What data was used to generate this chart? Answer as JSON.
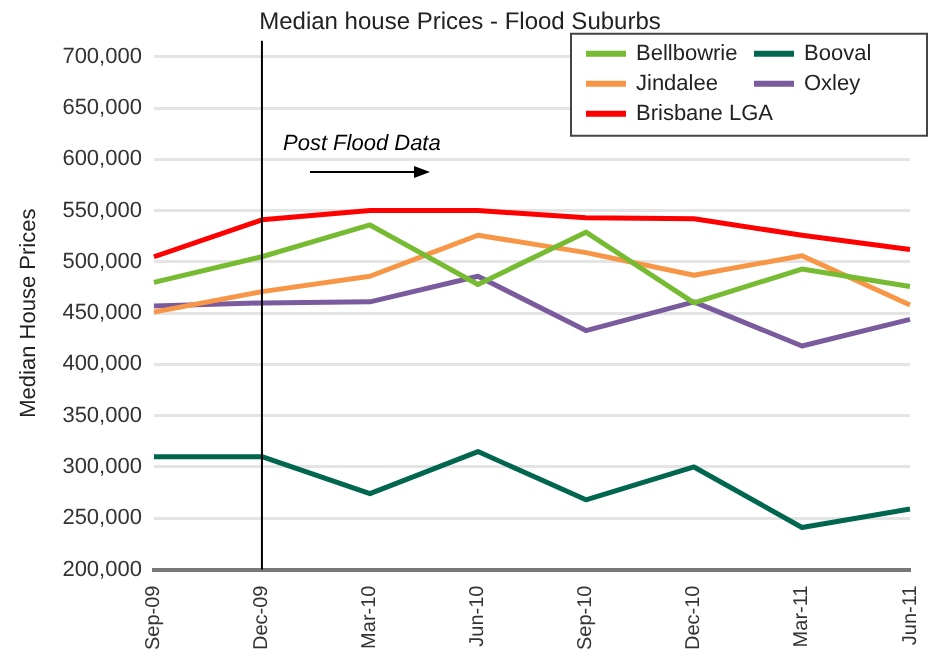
{
  "chart_data": {
    "type": "line",
    "title": "Median house Prices - Flood Suburbs",
    "ylabel": "Median House Prices",
    "categories": [
      "Sep-09",
      "Dec-09",
      "Mar-10",
      "Jun-10",
      "Sep-10",
      "Dec-10",
      "Mar-11",
      "Jun-11"
    ],
    "series": [
      {
        "name": "Bellbowrie",
        "color": "#77bb33",
        "values": [
          480000,
          505000,
          536000,
          478000,
          529000,
          460000,
          493000,
          476000
        ]
      },
      {
        "name": "Booval",
        "color": "#006650",
        "values": [
          310000,
          310000,
          274000,
          315000,
          268000,
          300000,
          241000,
          259000
        ]
      },
      {
        "name": "Jindalee",
        "color": "#f79646",
        "values": [
          451000,
          471000,
          486000,
          526000,
          509000,
          487000,
          506000,
          458000
        ]
      },
      {
        "name": "Oxley",
        "color": "#7a5c9e",
        "values": [
          457000,
          460000,
          461000,
          486000,
          433000,
          461000,
          418000,
          444000
        ]
      },
      {
        "name": "Brisbane LGA",
        "color": "#ff0000",
        "values": [
          505000,
          541000,
          550000,
          550000,
          543000,
          542000,
          526000,
          512000
        ]
      }
    ],
    "ylim": [
      200000,
      700000
    ],
    "yticks": [
      {
        "value": 200000,
        "label": "200,000"
      },
      {
        "value": 250000,
        "label": "250,000"
      },
      {
        "value": 300000,
        "label": "300,000"
      },
      {
        "value": 350000,
        "label": "350,000"
      },
      {
        "value": 400000,
        "label": "400,000"
      },
      {
        "value": 450000,
        "label": "450,000"
      },
      {
        "value": 500000,
        "label": "500,000"
      },
      {
        "value": 550000,
        "label": "550,000"
      },
      {
        "value": 600000,
        "label": "600,000"
      },
      {
        "value": 650000,
        "label": "650,000"
      },
      {
        "value": 700000,
        "label": "700,000"
      }
    ],
    "grid": "y",
    "legend": "top right",
    "marker": "none",
    "line_style": "solid",
    "ref_lines": [
      {
        "axis": "x",
        "value": "Dec-09",
        "color": "#000000"
      }
    ],
    "annotations": [
      "Post Flood Data"
    ]
  }
}
